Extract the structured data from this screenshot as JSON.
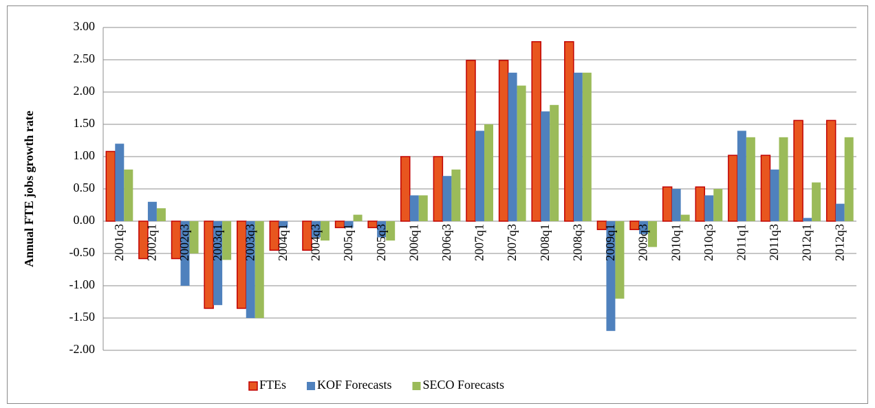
{
  "chart_data": {
    "type": "bar",
    "y_label": "Annual FTE jobs growth rate",
    "categories": [
      "2001q3",
      "2002q1",
      "2002q3",
      "2003q1",
      "2003q3",
      "2004q1",
      "2004q3",
      "2005q1",
      "2005q3",
      "2006q1",
      "2006q3",
      "2007q1",
      "2007q3",
      "2008q1",
      "2008q3",
      "2009q1",
      "2009q3",
      "2010q1",
      "2010q3",
      "2011q1",
      "2011q3",
      "2012q1",
      "2012q3"
    ],
    "series": [
      {
        "name": "FTEs",
        "color": "#e8561f",
        "values": [
          1.08,
          -0.58,
          -0.58,
          -1.35,
          -1.35,
          -0.45,
          -0.45,
          -0.1,
          -0.1,
          1.0,
          1.0,
          2.49,
          2.49,
          2.78,
          2.78,
          -0.13,
          -0.13,
          0.53,
          0.53,
          1.02,
          1.02,
          1.56,
          1.56
        ]
      },
      {
        "name": "KOF Forecasts",
        "color": "#4f81bd",
        "values": [
          1.2,
          0.3,
          -1.0,
          -1.3,
          -1.5,
          -0.1,
          -0.25,
          -0.1,
          -0.25,
          0.4,
          0.7,
          1.4,
          2.3,
          1.7,
          2.3,
          -1.7,
          -0.2,
          0.5,
          0.4,
          1.4,
          0.8,
          0.05,
          0.27
        ]
      },
      {
        "name": "SECO Forecasts",
        "color": "#9bbb59",
        "values": [
          0.8,
          0.2,
          -0.5,
          -0.6,
          -1.5,
          0.0,
          -0.3,
          0.1,
          -0.3,
          0.4,
          0.8,
          1.5,
          2.1,
          1.8,
          2.3,
          -1.2,
          -0.4,
          0.1,
          0.5,
          1.3,
          1.3,
          0.6,
          1.3
        ]
      }
    ],
    "ylim": [
      -2,
      3
    ],
    "yticks": [
      {
        "value": -2,
        "label": "-2.00"
      },
      {
        "value": -1.5,
        "label": "-1.50"
      },
      {
        "value": -1,
        "label": "-1.00"
      },
      {
        "value": -0.5,
        "label": "-0.50"
      },
      {
        "value": 0,
        "label": "0.00"
      },
      {
        "value": 0.5,
        "label": "0.50"
      },
      {
        "value": 1,
        "label": "1.00"
      },
      {
        "value": 1.5,
        "label": "1.50"
      },
      {
        "value": 2,
        "label": "2.00"
      },
      {
        "value": 2.5,
        "label": "2.50"
      },
      {
        "value": 3,
        "label": "3.00"
      }
    ],
    "grid": true,
    "legend": "bottom"
  }
}
